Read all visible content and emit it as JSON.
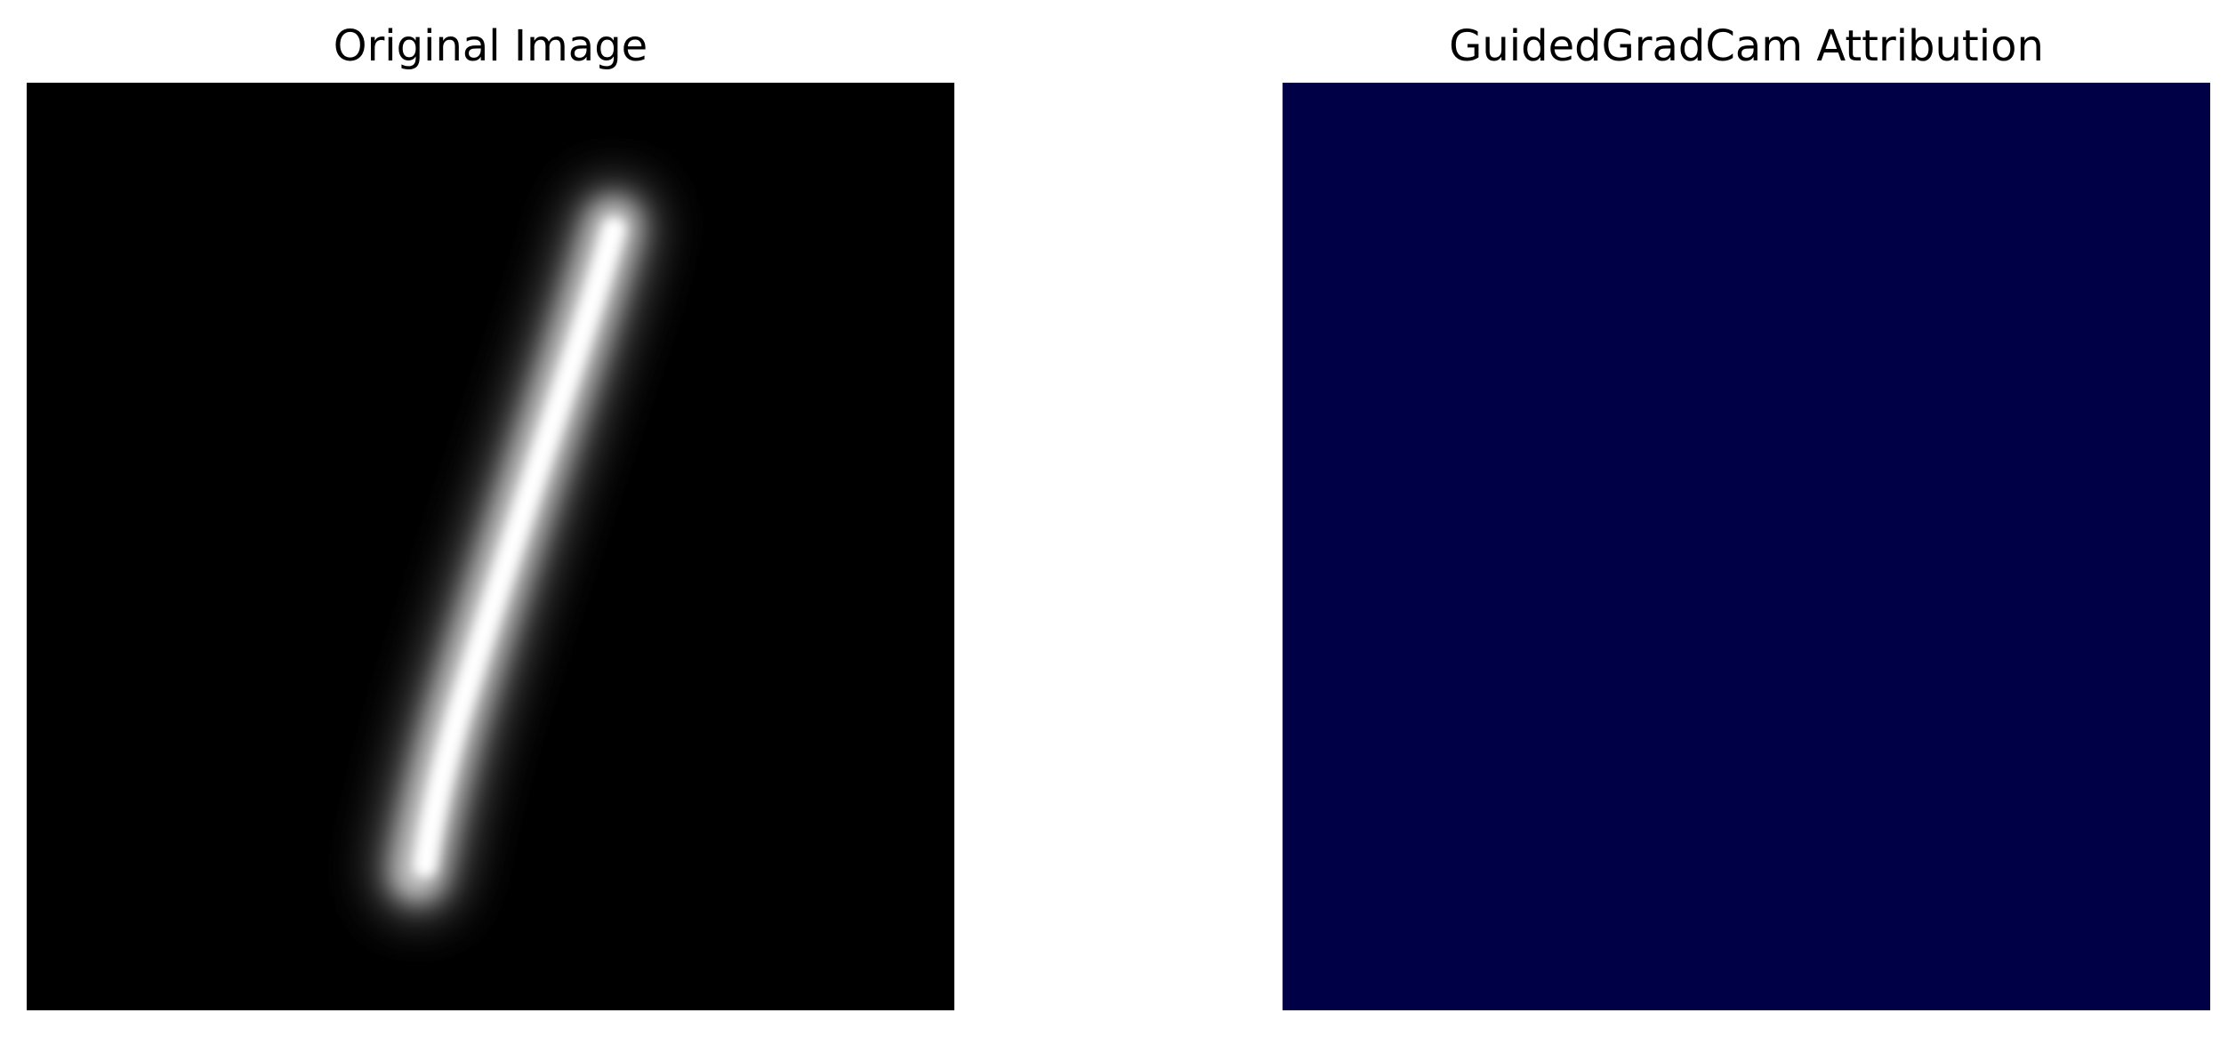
{
  "panels": [
    {
      "title": "Original Image",
      "image": "grayscale handwritten digit on black background",
      "background": "#000000"
    },
    {
      "title": "GuidedGradCam Attribution",
      "image": "uniform attribution heatmap",
      "fill": "#000046"
    }
  ]
}
